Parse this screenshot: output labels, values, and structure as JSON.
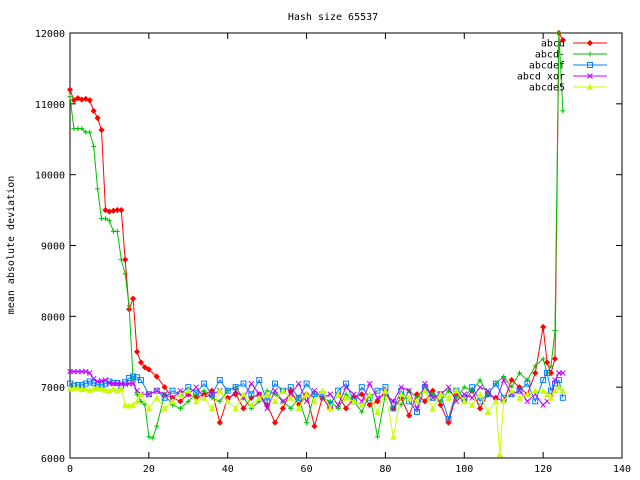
{
  "chart_data": {
    "type": "line",
    "title": "Hash size 65537",
    "xlabel": "",
    "ylabel": "mean absolute deviation",
    "xlim": [
      0,
      140
    ],
    "ylim": [
      6000,
      12000
    ],
    "x_ticks": [
      0,
      20,
      40,
      60,
      80,
      100,
      120,
      140
    ],
    "y_ticks": [
      6000,
      7000,
      8000,
      9000,
      10000,
      11000,
      12000
    ],
    "grid": false,
    "legend_position": "top-right",
    "series": [
      {
        "name": "abcd",
        "color": "#ff0000",
        "marker": "diamond",
        "x": [
          0,
          1,
          2,
          3,
          4,
          5,
          6,
          7,
          8,
          9,
          10,
          11,
          12,
          13,
          14,
          15,
          16,
          17,
          18,
          19,
          20,
          22,
          24,
          26,
          28,
          30,
          32,
          34,
          36,
          38,
          40,
          42,
          44,
          46,
          48,
          50,
          52,
          54,
          56,
          58,
          60,
          62,
          64,
          66,
          68,
          70,
          72,
          74,
          76,
          78,
          80,
          82,
          84,
          86,
          88,
          90,
          92,
          94,
          96,
          98,
          100,
          102,
          104,
          106,
          108,
          110,
          112,
          114,
          116,
          118,
          120,
          121,
          122,
          123,
          124,
          125
        ],
        "values": [
          11200,
          11050,
          11080,
          11060,
          11070,
          11050,
          10900,
          10800,
          10630,
          9500,
          9480,
          9490,
          9500,
          9500,
          8800,
          8100,
          8250,
          7500,
          7350,
          7280,
          7250,
          7150,
          7000,
          6850,
          6800,
          6900,
          6850,
          6900,
          6950,
          6500,
          6850,
          6900,
          6700,
          6850,
          6900,
          6750,
          6500,
          6700,
          6950,
          6750,
          6900,
          6450,
          6850,
          6700,
          6900,
          6700,
          6850,
          6900,
          6750,
          6800,
          6950,
          6700,
          6850,
          6600,
          6900,
          6800,
          6950,
          6750,
          6500,
          6900,
          6800,
          6950,
          6700,
          6900,
          6850,
          6800,
          7100,
          7000,
          6900,
          7200,
          7850,
          7350,
          7200,
          7400,
          12000,
          11900
        ]
      },
      {
        "name": "abcd-",
        "color": "#00c000",
        "marker": "plus",
        "x": [
          0,
          1,
          2,
          3,
          4,
          5,
          6,
          7,
          8,
          9,
          10,
          11,
          12,
          13,
          14,
          15,
          16,
          17,
          18,
          19,
          20,
          21,
          22,
          24,
          26,
          28,
          30,
          32,
          34,
          36,
          38,
          40,
          42,
          44,
          46,
          48,
          50,
          52,
          54,
          56,
          58,
          60,
          62,
          64,
          66,
          68,
          70,
          72,
          74,
          76,
          78,
          80,
          82,
          84,
          86,
          88,
          90,
          92,
          94,
          96,
          98,
          100,
          102,
          104,
          106,
          108,
          110,
          112,
          114,
          116,
          118,
          120,
          121,
          122,
          123,
          124,
          125
        ],
        "values": [
          11100,
          10650,
          10650,
          10650,
          10600,
          10600,
          10400,
          9800,
          9380,
          9380,
          9350,
          9200,
          9200,
          8800,
          8600,
          8150,
          7100,
          6900,
          6800,
          6750,
          6300,
          6280,
          6450,
          6900,
          6750,
          6700,
          6800,
          6900,
          6950,
          6850,
          6800,
          6950,
          7000,
          6850,
          6700,
          6800,
          6950,
          6900,
          6800,
          6700,
          6850,
          6500,
          6900,
          6850,
          6800,
          6700,
          6900,
          6800,
          6650,
          6900,
          6300,
          6900,
          6800,
          6750,
          6950,
          6850,
          7000,
          6900,
          6800,
          6950,
          6850,
          7000,
          6950,
          7100,
          6900,
          7050,
          7150,
          7000,
          7200,
          7100,
          7300,
          7400,
          7200,
          7300,
          7800,
          12000,
          10900
        ]
      },
      {
        "name": "abcdef",
        "color": "#0080ff",
        "marker": "square",
        "x": [
          0,
          1,
          2,
          3,
          4,
          5,
          6,
          7,
          8,
          9,
          10,
          11,
          12,
          13,
          14,
          15,
          16,
          17,
          18,
          20,
          22,
          24,
          26,
          28,
          30,
          32,
          34,
          36,
          38,
          40,
          42,
          44,
          46,
          48,
          50,
          52,
          54,
          56,
          58,
          60,
          62,
          64,
          66,
          68,
          70,
          72,
          74,
          76,
          78,
          80,
          82,
          84,
          86,
          88,
          90,
          92,
          94,
          96,
          98,
          100,
          102,
          104,
          106,
          108,
          110,
          112,
          114,
          116,
          118,
          120,
          121,
          122,
          123,
          124,
          125
        ],
        "values": [
          7050,
          7020,
          7030,
          7030,
          7050,
          7080,
          7060,
          7040,
          7030,
          7050,
          7080,
          7060,
          7060,
          7020,
          7070,
          7130,
          7150,
          7140,
          7100,
          6900,
          6950,
          6850,
          6950,
          6900,
          7000,
          6920,
          7050,
          6900,
          7100,
          6950,
          7000,
          7050,
          6900,
          7100,
          6800,
          7050,
          6950,
          7000,
          6850,
          7050,
          6900,
          6900,
          6750,
          6950,
          7050,
          6800,
          7000,
          6850,
          6950,
          7000,
          6700,
          6950,
          6800,
          6650,
          7000,
          6850,
          6900,
          6550,
          6950,
          6850,
          7000,
          6800,
          6900,
          7050,
          6850,
          6900,
          6950,
          7050,
          6800,
          7100,
          7200,
          6950,
          7050,
          7100,
          6850
        ]
      },
      {
        "name": "abcd xor",
        "color": "#c000ff",
        "marker": "x",
        "x": [
          0,
          1,
          2,
          3,
          4,
          5,
          6,
          7,
          8,
          9,
          10,
          11,
          12,
          13,
          14,
          15,
          16,
          17,
          18,
          20,
          22,
          24,
          26,
          28,
          30,
          32,
          34,
          36,
          38,
          40,
          42,
          44,
          46,
          48,
          50,
          52,
          54,
          56,
          58,
          60,
          62,
          64,
          66,
          68,
          70,
          72,
          74,
          76,
          78,
          80,
          82,
          84,
          86,
          88,
          90,
          92,
          94,
          96,
          98,
          100,
          102,
          104,
          106,
          108,
          110,
          112,
          114,
          116,
          118,
          120,
          121,
          122,
          123,
          124,
          125
        ],
        "values": [
          7220,
          7220,
          7220,
          7220,
          7220,
          7200,
          7120,
          7080,
          7090,
          7100,
          7060,
          7050,
          7050,
          7050,
          7040,
          7050,
          7050,
          6950,
          6900,
          6900,
          6950,
          6900,
          6850,
          6950,
          6900,
          7000,
          6850,
          6900,
          6950,
          6800,
          6950,
          6850,
          7050,
          6900,
          6700,
          6950,
          6800,
          6900,
          7050,
          6800,
          6950,
          6850,
          6900,
          6750,
          7000,
          6900,
          6800,
          7050,
          6850,
          6900,
          6800,
          7000,
          6950,
          6700,
          7050,
          6850,
          6900,
          7000,
          6800,
          6900,
          6850,
          7000,
          6950,
          6800,
          7100,
          6900,
          6950,
          6800,
          6900,
          6750,
          6800,
          6850,
          7100,
          7200,
          7200
        ]
      },
      {
        "name": "abcde5",
        "color": "#c8ff00",
        "marker": "triangle",
        "x": [
          0,
          1,
          2,
          3,
          4,
          5,
          6,
          7,
          8,
          9,
          10,
          11,
          12,
          13,
          14,
          15,
          16,
          17,
          18,
          20,
          22,
          24,
          26,
          28,
          30,
          32,
          34,
          36,
          38,
          40,
          42,
          44,
          46,
          48,
          50,
          52,
          54,
          56,
          58,
          60,
          62,
          64,
          66,
          68,
          70,
          72,
          74,
          76,
          78,
          80,
          82,
          84,
          86,
          88,
          90,
          92,
          94,
          96,
          98,
          100,
          102,
          104,
          106,
          108,
          109,
          110,
          112,
          114,
          116,
          118,
          120,
          121,
          122,
          123,
          124,
          125
        ],
        "values": [
          6980,
          6990,
          6990,
          6970,
          6980,
          6960,
          6980,
          6990,
          6980,
          6960,
          6950,
          6980,
          6950,
          6980,
          6750,
          6740,
          6750,
          6800,
          6900,
          6700,
          6850,
          6700,
          6800,
          6900,
          6950,
          6800,
          6850,
          6700,
          6950,
          6800,
          6700,
          6900,
          6750,
          6850,
          6900,
          6800,
          6950,
          6850,
          6700,
          6900,
          6800,
          6950,
          6700,
          6900,
          6850,
          6800,
          6750,
          6900,
          6650,
          6950,
          6300,
          6900,
          6850,
          6800,
          6950,
          6700,
          6900,
          6850,
          6950,
          6800,
          6750,
          6900,
          6650,
          6800,
          6050,
          6800,
          6950,
          6850,
          6900,
          6950,
          6950,
          6900,
          6850,
          6950,
          7000,
          6950
        ]
      }
    ]
  }
}
